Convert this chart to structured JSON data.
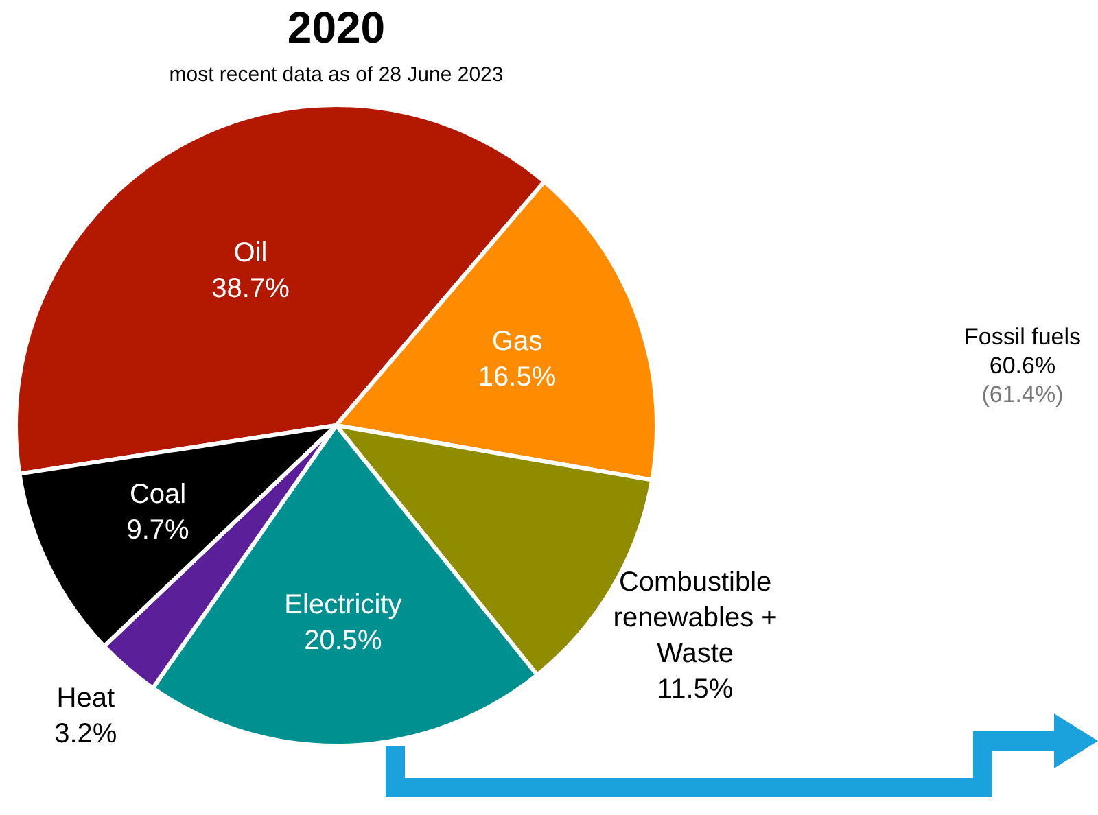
{
  "chart_data": {
    "type": "pie",
    "title": "2020",
    "subtitle": "most recent data as of 28 June 2023",
    "categories": [
      "Oil",
      "Gas",
      "Combustible renewables + Waste",
      "Electricity",
      "Heat",
      "Coal"
    ],
    "values": [
      38.7,
      16.5,
      11.5,
      20.5,
      3.2,
      9.7
    ],
    "colors": [
      "#b31800",
      "#ff8c00",
      "#8f8c00",
      "#009090",
      "#5b1f9a",
      "#000000"
    ],
    "value_labels": [
      "38.7%",
      "16.5%",
      "11.5%",
      "20.5%",
      "3.2%",
      "9.7%"
    ],
    "legend": false,
    "annotations": [
      "Fossil fuels",
      "60.6%",
      "(61.4%)"
    ]
  }
}
